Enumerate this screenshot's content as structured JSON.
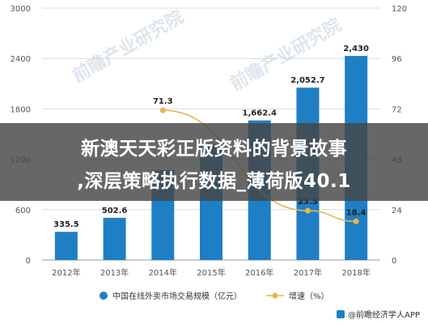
{
  "chart_data": {
    "type": "bar",
    "categories": [
      "2012年",
      "2013年",
      "2014年",
      "2015年",
      "2016年",
      "2017年",
      "2018年"
    ],
    "series": [
      {
        "name": "中国在线外卖市场交易规模（亿元）",
        "type": "bar",
        "axis": "left",
        "color": "#1f7fc4",
        "values": [
          335.5,
          502.6,
          1070,
          1380,
          1662.4,
          2052.7,
          2430
        ],
        "labels": [
          "335.5",
          "502.6",
          "",
          "",
          "1,662.4",
          "2,052.7",
          "2,430"
        ]
      },
      {
        "name": "增速（%）",
        "type": "line",
        "axis": "right",
        "color": "#e8b64a",
        "values": [
          null,
          null,
          71.3,
          null,
          null,
          23.5,
          18.4
        ],
        "labels": [
          "",
          "",
          "71.3",
          "",
          "",
          "23.5",
          "18.4"
        ]
      }
    ],
    "y_left": {
      "ticks": [
        "0",
        "600",
        "1200",
        "1800",
        "2400",
        "3000"
      ],
      "range": [
        0,
        3000
      ]
    },
    "y_right": {
      "ticks": [
        "0",
        "24",
        "48",
        "72",
        "96",
        "120"
      ],
      "range": [
        0,
        120
      ]
    },
    "grid": true,
    "legend_position": "bottom"
  },
  "overlay": {
    "line1": "新澳天天彩正版资料的背景故事",
    "line2": ",深层策略执行数据_薄荷版40.1"
  },
  "watermarks": [
    "前瞻产业研究院",
    "前瞻产业研究院"
  ],
  "source": {
    "icon": "qianzhan-logo-icon",
    "text": "@前瞻经济学人APP"
  }
}
